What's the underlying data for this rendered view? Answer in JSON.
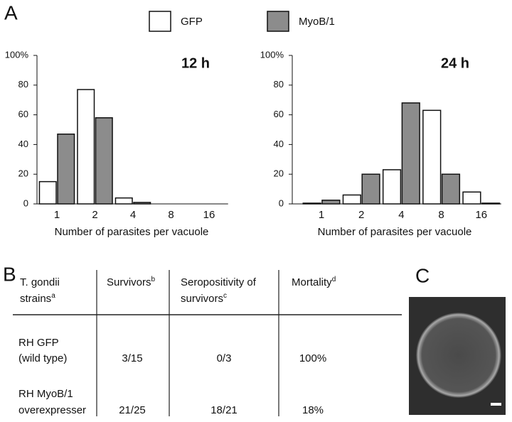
{
  "panels": [
    "A",
    "B",
    "C"
  ],
  "chart_data": [
    {
      "type": "bar",
      "title": "12 h",
      "x_label": "Number of parasites per vacuole",
      "categories": [
        "1",
        "2",
        "4",
        "8",
        "16"
      ],
      "series": [
        {
          "name": "GFP",
          "color": "#ffffff",
          "values": [
            15,
            77,
            4,
            0,
            0
          ]
        },
        {
          "name": "MyoB/1",
          "color": "#8c8c8c",
          "values": [
            47,
            58,
            1,
            0,
            0
          ]
        }
      ],
      "ylim": [
        0,
        100
      ],
      "yticks": [
        0,
        20,
        40,
        60,
        80,
        {
          "value": 100,
          "label": "100%"
        }
      ]
    },
    {
      "type": "bar",
      "title": "24 h",
      "x_label": "Number of parasites per vacuole",
      "categories": [
        "1",
        "2",
        "4",
        "8",
        "16"
      ],
      "series": [
        {
          "name": "GFP",
          "color": "#ffffff",
          "values": [
            0.5,
            6,
            23,
            63,
            8
          ]
        },
        {
          "name": "MyoB/1",
          "color": "#8c8c8c",
          "values": [
            2.5,
            20,
            68,
            20,
            0.5
          ]
        }
      ],
      "ylim": [
        0,
        100
      ],
      "yticks": [
        0,
        20,
        40,
        60,
        80,
        {
          "value": 100,
          "label": "100%"
        }
      ]
    }
  ],
  "table": {
    "header": [
      {
        "lines": [
          "T. gondii",
          "strains"
        ],
        "sup": "a"
      },
      {
        "lines": [
          "Survivors"
        ],
        "sup": "b"
      },
      {
        "lines": [
          "Seropositivity of",
          "survivors"
        ],
        "sup": "c"
      },
      {
        "lines": [
          "Mortality"
        ],
        "sup": "d"
      }
    ],
    "rows": [
      [
        [
          "RH GFP",
          "(wild type)"
        ],
        "3/15",
        "0/3",
        "100%"
      ],
      [
        [
          "RH MyoB/1",
          "overexpresser"
        ],
        "21/25",
        "18/21",
        "18%"
      ]
    ]
  }
}
